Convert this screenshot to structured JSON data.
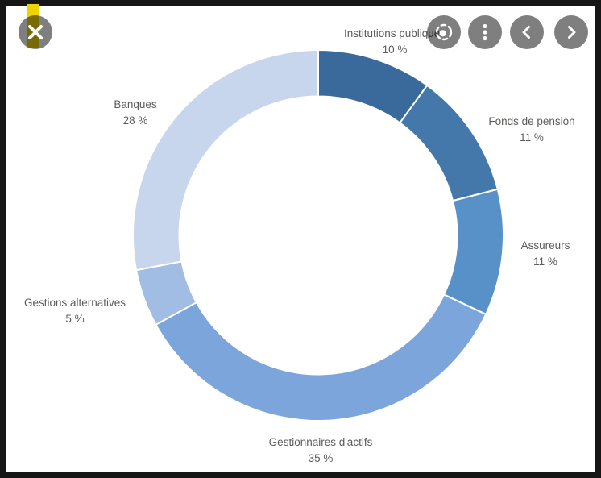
{
  "window": {
    "close_button": {
      "icon": "close-icon"
    }
  },
  "toolbar": {
    "buttons": [
      {
        "name": "focus-mode",
        "icon": "focus-icon"
      },
      {
        "name": "more-options",
        "icon": "kebab-menu-icon"
      },
      {
        "name": "previous",
        "icon": "chevron-left-icon"
      },
      {
        "name": "next",
        "icon": "chevron-right-icon"
      }
    ]
  },
  "chart_data": {
    "type": "pie",
    "subtype": "donut",
    "title": "",
    "unit": "%",
    "direction": "clockwise",
    "start_angle_deg": 0,
    "inner_radius_ratio": 0.75,
    "categories": [
      "Institutions publiques",
      "Fonds de pension",
      "Assureurs",
      "Gestionnaires d'actifs",
      "Gestions alternatives",
      "Banques"
    ],
    "values": [
      10,
      11,
      11,
      35,
      5,
      28
    ],
    "slices": [
      {
        "key": "institutions-publiques",
        "label": "Institutions publiques",
        "value": 10,
        "value_label": "10 %",
        "color": "#3a6a9b"
      },
      {
        "key": "fonds-de-pension",
        "label": "Fonds de pension",
        "value": 11,
        "value_label": "11 %",
        "color": "#4478ab"
      },
      {
        "key": "assureurs",
        "label": "Assureurs",
        "value": 11,
        "value_label": "11 %",
        "color": "#5890c8"
      },
      {
        "key": "gestionnaires-actifs",
        "label": "Gestionnaires d'actifs",
        "value": 35,
        "value_label": "35 %",
        "color": "#7ca6db"
      },
      {
        "key": "gestions-alternatives",
        "label": "Gestions alternatives",
        "value": 5,
        "value_label": "5 %",
        "color": "#a2bde4"
      },
      {
        "key": "banques",
        "label": "Banques",
        "value": 28,
        "value_label": "28 %",
        "color": "#c8d6ed"
      }
    ],
    "colors": [
      "#3a6a9b",
      "#4478ab",
      "#5890c8",
      "#7ca6db",
      "#a2bde4",
      "#c8d6ed"
    ],
    "label_text_color": "#5e5c5a",
    "legend_position": "none"
  }
}
